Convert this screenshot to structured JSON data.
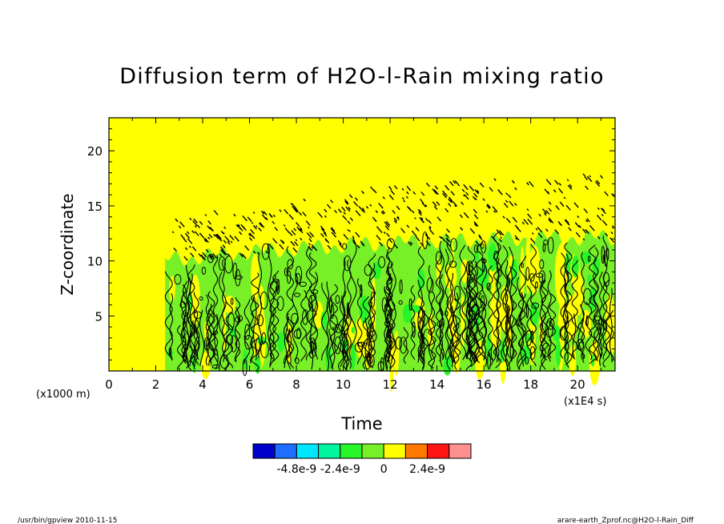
{
  "chart_data": {
    "type": "heatmap",
    "title": "Diffusion term of H2O-l-Rain mixing ratio",
    "xlabel": "Time",
    "ylabel": "Z-coordinate",
    "x_unit_label": "(x1E4 s)",
    "y_unit_label": "(x1000 m)",
    "xlim": [
      0,
      21.6
    ],
    "ylim": [
      0,
      23
    ],
    "x_ticks": [
      0,
      2,
      4,
      6,
      8,
      10,
      12,
      14,
      16,
      18,
      20
    ],
    "x_tick_labels": [
      "0",
      "2",
      "4",
      "6",
      "8",
      "10",
      "12",
      "14",
      "16",
      "18",
      "20"
    ],
    "y_ticks": [
      5,
      10,
      15,
      20
    ],
    "y_tick_labels": [
      "5",
      "10",
      "15",
      "20"
    ],
    "background_value": 0,
    "active_region": {
      "x_start": 2.4,
      "convective_top": [
        [
          2.4,
          10.5
        ],
        [
          4,
          10.8
        ],
        [
          6,
          11.2
        ],
        [
          8,
          11.5
        ],
        [
          10,
          11.8
        ],
        [
          12,
          12.0
        ],
        [
          14,
          12.2
        ],
        [
          16,
          12.3
        ],
        [
          18,
          12.5
        ],
        [
          21.6,
          12.5
        ]
      ],
      "upper_wave_top": [
        [
          2.6,
          14
        ],
        [
          4,
          14.5
        ],
        [
          6,
          15
        ],
        [
          8,
          15.5
        ],
        [
          10,
          16.5
        ],
        [
          12,
          17
        ],
        [
          14,
          17.5
        ],
        [
          16,
          17.5
        ],
        [
          18,
          17.8
        ],
        [
          21.6,
          18
        ]
      ]
    },
    "colorbar": {
      "levels": [
        -6e-09,
        -4.8e-09,
        -3.6e-09,
        -2.4e-09,
        -1.2e-09,
        0,
        1.2e-09,
        2.4e-09,
        3.6e-09
      ],
      "colors": [
        "#0000cd",
        "#1e6eff",
        "#00e6ff",
        "#00f5a0",
        "#28f528",
        "#78f028",
        "#ffff00",
        "#ff7800",
        "#ff1414",
        "#ff9090"
      ],
      "tick_labels": [
        "-4.8e-9",
        "-2.4e-9",
        "0",
        "2.4e-9"
      ],
      "tick_box_index": [
        1,
        3,
        5,
        7
      ]
    }
  },
  "footer": {
    "left": "/usr/bin/gpview   2010-11-15",
    "right": "arare-earth_Zprof.nc@H2O-l-Rain_Diff"
  }
}
